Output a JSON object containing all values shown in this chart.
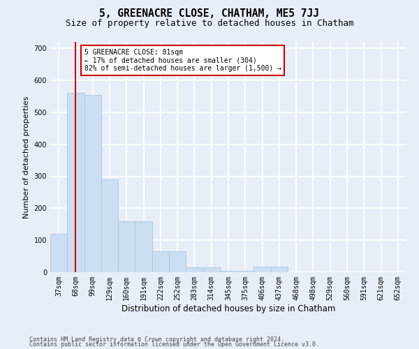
{
  "title": "5, GREENACRE CLOSE, CHATHAM, ME5 7JJ",
  "subtitle": "Size of property relative to detached houses in Chatham",
  "xlabel": "Distribution of detached houses by size in Chatham",
  "ylabel": "Number of detached properties",
  "categories": [
    "37sqm",
    "68sqm",
    "99sqm",
    "129sqm",
    "160sqm",
    "191sqm",
    "222sqm",
    "252sqm",
    "283sqm",
    "314sqm",
    "345sqm",
    "375sqm",
    "406sqm",
    "437sqm",
    "468sqm",
    "498sqm",
    "529sqm",
    "560sqm",
    "591sqm",
    "621sqm",
    "652sqm"
  ],
  "values": [
    120,
    560,
    555,
    290,
    160,
    160,
    65,
    65,
    15,
    15,
    5,
    5,
    18,
    18,
    0,
    0,
    0,
    0,
    0,
    0,
    0
  ],
  "bar_color": "#ccdff2",
  "bar_edgecolor": "#aac4e0",
  "vline_x": 1,
  "vline_color": "#cc0000",
  "annotation_text": "5 GREENACRE CLOSE: 81sqm\n← 17% of detached houses are smaller (304)\n82% of semi-detached houses are larger (1,500) →",
  "annotation_box_facecolor": "#ffffff",
  "annotation_box_edgecolor": "#cc0000",
  "ylim": [
    0,
    720
  ],
  "yticks": [
    0,
    100,
    200,
    300,
    400,
    500,
    600,
    700
  ],
  "footer1": "Contains HM Land Registry data © Crown copyright and database right 2024.",
  "footer2": "Contains public sector information licensed under the Open Government Licence v3.0.",
  "bg_color": "#e8eef8",
  "plot_bg_color": "#e8eef8",
  "grid_color": "#ffffff",
  "title_fontsize": 10.5,
  "subtitle_fontsize": 9,
  "ylabel_fontsize": 8,
  "xlabel_fontsize": 8.5,
  "tick_fontsize": 7,
  "annot_fontsize": 7,
  "footer_fontsize": 6
}
